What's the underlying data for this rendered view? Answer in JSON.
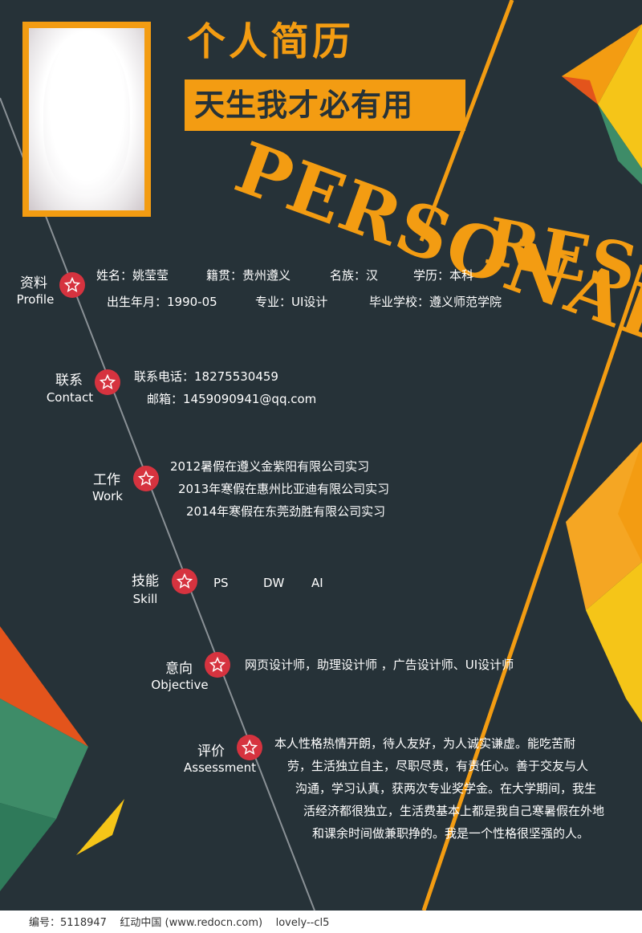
{
  "header": {
    "title_cn": "个人简历",
    "slogan": "天生我才必有用",
    "title_en_1": "PERSONAL",
    "title_en_2": "RESUME"
  },
  "colors": {
    "background": "#263238",
    "accent": "#f39c12",
    "star": "#d6333f",
    "green": "#3e8c68",
    "yellow": "#f5c518",
    "red_orange": "#e3541c"
  },
  "profile": {
    "label_cn": "资料",
    "label_en": "Profile",
    "name": "姓名：姚莹莹",
    "hometown": "籍贯：贵州遵义",
    "ethnicity": "名族：汉",
    "education": "学历：本科",
    "birth": "出生年月：1990-05",
    "major": "专业：UI设计",
    "school": "毕业学校：遵义师范学院"
  },
  "contact": {
    "label_cn": "联系",
    "label_en": "Contact",
    "phone": "联系电话：18275530459",
    "email": "邮箱：1459090941@qq.com"
  },
  "work": {
    "label_cn": "工作",
    "label_en": "Work",
    "items": [
      "2012暑假在遵义金紫阳有限公司实习",
      "2013年寒假在惠州比亚迪有限公司实习",
      "2014年寒假在东莞劲胜有限公司实习"
    ]
  },
  "skill": {
    "label_cn": "技能",
    "label_en": "Skill",
    "items": [
      "PS",
      "DW",
      "AI"
    ]
  },
  "objective": {
    "label_cn": "意向",
    "label_en": "Objective",
    "text": "网页设计师，助理设计师 ，广告设计师、UI设计师"
  },
  "assessment": {
    "label_cn": "评价",
    "label_en": "Assessment",
    "lines": [
      "本人性格热情开朗，待人友好，为人诚实谦虚。能吃苦耐",
      "劳，生活独立自主，尽职尽责，有责任心。善于交友与人",
      "沟通，学习认真，获两次专业奖学金。在大学期间，我生",
      "活经济都很独立，生活费基本上都是我自己寒暑假在外地",
      "和课余时间做兼职挣的。我是一个性格很坚强的人。"
    ]
  },
  "footer": {
    "text": "编号：5118947    红动中国 (www.redocn.com)    lovely--cl5"
  }
}
